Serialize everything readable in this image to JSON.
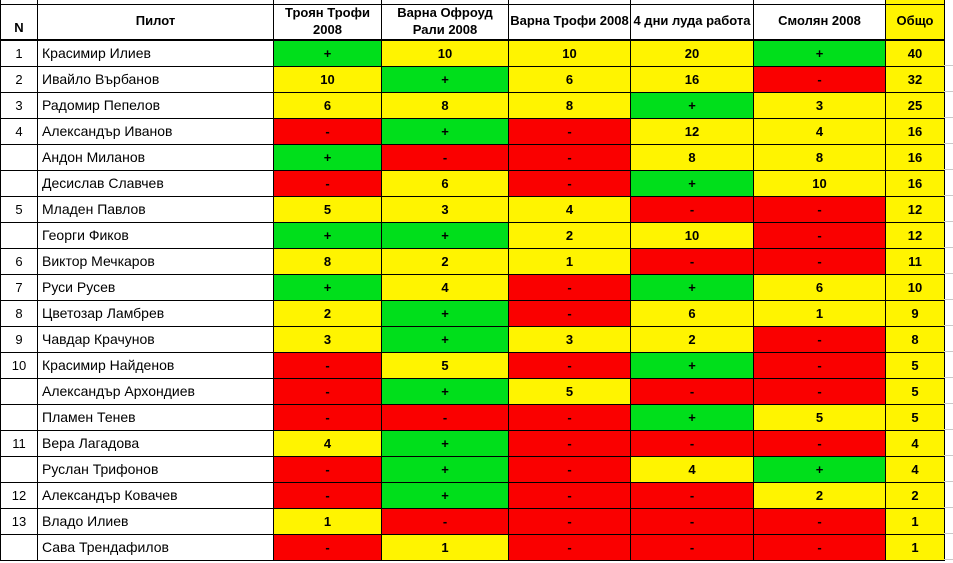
{
  "colors": {
    "green": "#00df1b",
    "yellow": "#fff400",
    "red": "#fa0000",
    "border": "#000000",
    "gridline": "#c9c9c9"
  },
  "table": {
    "columns": [
      {
        "label": "N"
      },
      {
        "label": "Пилот"
      },
      {
        "label": "Троян Трофи 2008"
      },
      {
        "label": "Варна Офроуд Рали 2008"
      },
      {
        "label": "Варна Трофи 2008"
      },
      {
        "label": "4 дни луда работа"
      },
      {
        "label": "Смолян 2008"
      },
      {
        "label": "Общо"
      }
    ],
    "rows": [
      {
        "n": "1",
        "pilot": "Красимир Илиев",
        "scores": [
          {
            "v": "+",
            "c": "green"
          },
          {
            "v": "10",
            "c": "yellow"
          },
          {
            "v": "10",
            "c": "yellow"
          },
          {
            "v": "20",
            "c": "yellow"
          },
          {
            "v": "+",
            "c": "green"
          }
        ],
        "total": "40"
      },
      {
        "n": "2",
        "pilot": "Ивайло Върбанов",
        "scores": [
          {
            "v": "10",
            "c": "yellow"
          },
          {
            "v": "+",
            "c": "green"
          },
          {
            "v": "6",
            "c": "yellow"
          },
          {
            "v": "16",
            "c": "yellow"
          },
          {
            "v": "-",
            "c": "red"
          }
        ],
        "total": "32"
      },
      {
        "n": "3",
        "pilot": "Радомир Пепелов",
        "scores": [
          {
            "v": "6",
            "c": "yellow"
          },
          {
            "v": "8",
            "c": "yellow"
          },
          {
            "v": "8",
            "c": "yellow"
          },
          {
            "v": "+",
            "c": "green"
          },
          {
            "v": "3",
            "c": "yellow"
          }
        ],
        "total": "25"
      },
      {
        "n": "4",
        "pilot": "Александър Иванов",
        "scores": [
          {
            "v": "-",
            "c": "red"
          },
          {
            "v": "+",
            "c": "green"
          },
          {
            "v": "-",
            "c": "red"
          },
          {
            "v": "12",
            "c": "yellow"
          },
          {
            "v": "4",
            "c": "yellow"
          }
        ],
        "total": "16"
      },
      {
        "n": "",
        "pilot": "Андон Миланов",
        "scores": [
          {
            "v": "+",
            "c": "green"
          },
          {
            "v": "-",
            "c": "red"
          },
          {
            "v": "-",
            "c": "red"
          },
          {
            "v": "8",
            "c": "yellow"
          },
          {
            "v": "8",
            "c": "yellow"
          }
        ],
        "total": "16"
      },
      {
        "n": "",
        "pilot": "Десислав Славчев",
        "scores": [
          {
            "v": "-",
            "c": "red"
          },
          {
            "v": "6",
            "c": "yellow"
          },
          {
            "v": "-",
            "c": "red"
          },
          {
            "v": "+",
            "c": "green"
          },
          {
            "v": "10",
            "c": "yellow"
          }
        ],
        "total": "16"
      },
      {
        "n": "5",
        "pilot": "Младен Павлов",
        "scores": [
          {
            "v": "5",
            "c": "yellow"
          },
          {
            "v": "3",
            "c": "yellow"
          },
          {
            "v": "4",
            "c": "yellow"
          },
          {
            "v": "-",
            "c": "red"
          },
          {
            "v": "-",
            "c": "red"
          }
        ],
        "total": "12"
      },
      {
        "n": "",
        "pilot": "Георги Фиков",
        "scores": [
          {
            "v": "+",
            "c": "green"
          },
          {
            "v": "+",
            "c": "green"
          },
          {
            "v": "2",
            "c": "yellow"
          },
          {
            "v": "10",
            "c": "yellow"
          },
          {
            "v": "-",
            "c": "red"
          }
        ],
        "total": "12"
      },
      {
        "n": "6",
        "pilot": "Виктор Мечкаров",
        "scores": [
          {
            "v": "8",
            "c": "yellow"
          },
          {
            "v": "2",
            "c": "yellow"
          },
          {
            "v": "1",
            "c": "yellow"
          },
          {
            "v": "-",
            "c": "red"
          },
          {
            "v": "-",
            "c": "red"
          }
        ],
        "total": "11"
      },
      {
        "n": "7",
        "pilot": "Руси Русев",
        "scores": [
          {
            "v": "+",
            "c": "green"
          },
          {
            "v": "4",
            "c": "yellow"
          },
          {
            "v": "-",
            "c": "red"
          },
          {
            "v": "+",
            "c": "green"
          },
          {
            "v": "6",
            "c": "yellow"
          }
        ],
        "total": "10"
      },
      {
        "n": "8",
        "pilot": "Цветозар Ламбрев",
        "scores": [
          {
            "v": "2",
            "c": "yellow"
          },
          {
            "v": "+",
            "c": "green"
          },
          {
            "v": "-",
            "c": "red"
          },
          {
            "v": "6",
            "c": "yellow"
          },
          {
            "v": "1",
            "c": "yellow"
          }
        ],
        "total": "9"
      },
      {
        "n": "9",
        "pilot": "Чавдар Крачунов",
        "scores": [
          {
            "v": "3",
            "c": "yellow"
          },
          {
            "v": "+",
            "c": "green"
          },
          {
            "v": "3",
            "c": "yellow"
          },
          {
            "v": "2",
            "c": "yellow"
          },
          {
            "v": "-",
            "c": "red"
          }
        ],
        "total": "8"
      },
      {
        "n": "10",
        "pilot": "Красимир Найденов",
        "scores": [
          {
            "v": "-",
            "c": "red"
          },
          {
            "v": "5",
            "c": "yellow"
          },
          {
            "v": "-",
            "c": "red"
          },
          {
            "v": "+",
            "c": "green"
          },
          {
            "v": "-",
            "c": "red"
          }
        ],
        "total": "5"
      },
      {
        "n": "",
        "pilot": "Александър Архондиев",
        "scores": [
          {
            "v": "-",
            "c": "red"
          },
          {
            "v": "+",
            "c": "green"
          },
          {
            "v": "5",
            "c": "yellow"
          },
          {
            "v": "-",
            "c": "red"
          },
          {
            "v": "-",
            "c": "red"
          }
        ],
        "total": "5"
      },
      {
        "n": "",
        "pilot": "Пламен Тенев",
        "scores": [
          {
            "v": "-",
            "c": "red"
          },
          {
            "v": "-",
            "c": "red"
          },
          {
            "v": "-",
            "c": "red"
          },
          {
            "v": "+",
            "c": "green"
          },
          {
            "v": "5",
            "c": "yellow"
          }
        ],
        "total": "5"
      },
      {
        "n": "11",
        "pilot": "Вера Лагадова",
        "scores": [
          {
            "v": "4",
            "c": "yellow"
          },
          {
            "v": "+",
            "c": "green"
          },
          {
            "v": "-",
            "c": "red"
          },
          {
            "v": "-",
            "c": "red"
          },
          {
            "v": "-",
            "c": "red"
          }
        ],
        "total": "4"
      },
      {
        "n": "",
        "pilot": "Руслан Трифонов",
        "scores": [
          {
            "v": "-",
            "c": "red"
          },
          {
            "v": "+",
            "c": "green"
          },
          {
            "v": "-",
            "c": "red"
          },
          {
            "v": "4",
            "c": "yellow"
          },
          {
            "v": "+",
            "c": "green"
          }
        ],
        "total": "4"
      },
      {
        "n": "12",
        "pilot": "Александър Ковачев",
        "scores": [
          {
            "v": "-",
            "c": "red"
          },
          {
            "v": "+",
            "c": "green"
          },
          {
            "v": "-",
            "c": "red"
          },
          {
            "v": "-",
            "c": "red"
          },
          {
            "v": "2",
            "c": "yellow"
          }
        ],
        "total": "2"
      },
      {
        "n": "13",
        "pilot": "Владо Илиев",
        "scores": [
          {
            "v": "1",
            "c": "yellow"
          },
          {
            "v": "-",
            "c": "red"
          },
          {
            "v": "-",
            "c": "red"
          },
          {
            "v": "-",
            "c": "red"
          },
          {
            "v": "-",
            "c": "red"
          }
        ],
        "total": "1"
      },
      {
        "n": "",
        "pilot": "Сава Трендафилов",
        "scores": [
          {
            "v": "-",
            "c": "red"
          },
          {
            "v": "1",
            "c": "yellow"
          },
          {
            "v": "-",
            "c": "red"
          },
          {
            "v": "-",
            "c": "red"
          },
          {
            "v": "-",
            "c": "red"
          }
        ],
        "total": "1"
      }
    ]
  }
}
